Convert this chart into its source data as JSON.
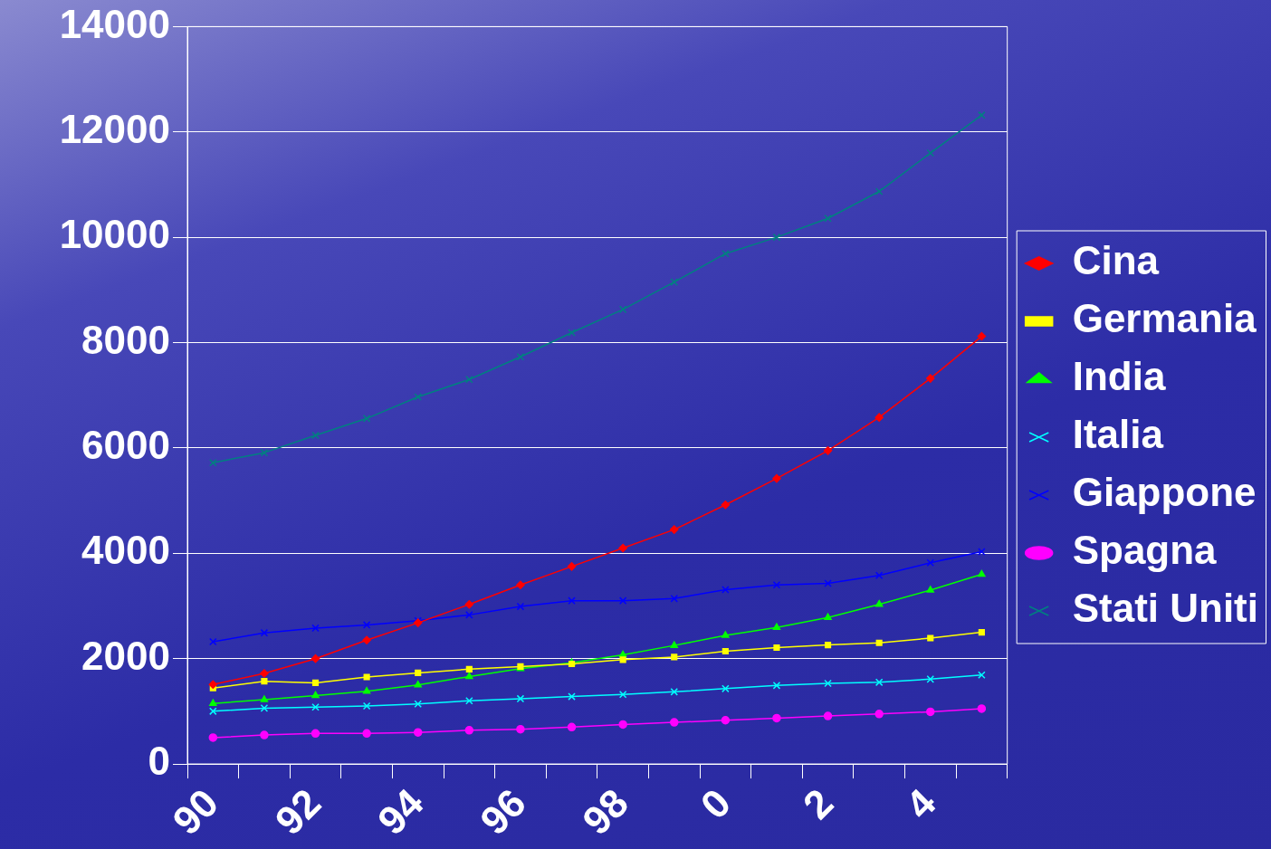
{
  "chart_data": {
    "type": "line",
    "categories": [
      "90",
      null,
      "92",
      null,
      "94",
      null,
      "96",
      null,
      "98",
      null,
      "0",
      null,
      "2",
      null,
      "4",
      null
    ],
    "series": [
      {
        "name": "Cina",
        "color": "#ff0000",
        "marker": "diamond",
        "values": [
          1510,
          1720,
          2000,
          2350,
          2680,
          3030,
          3400,
          3750,
          4100,
          4450,
          4920,
          5420,
          5950,
          6580,
          7320,
          8120
        ]
      },
      {
        "name": "Germania",
        "color": "#ffff00",
        "marker": "square",
        "values": [
          1440,
          1570,
          1540,
          1650,
          1730,
          1800,
          1850,
          1900,
          1980,
          2030,
          2140,
          2210,
          2260,
          2300,
          2390,
          2500
        ]
      },
      {
        "name": "India",
        "color": "#00ff00",
        "marker": "triangle",
        "values": [
          1150,
          1220,
          1300,
          1380,
          1500,
          1660,
          1810,
          1920,
          2070,
          2250,
          2440,
          2590,
          2780,
          3030,
          3300,
          3600
        ]
      },
      {
        "name": "Italia",
        "color": "#00ffff",
        "marker": "cross",
        "values": [
          1000,
          1060,
          1080,
          1100,
          1140,
          1200,
          1240,
          1280,
          1320,
          1370,
          1430,
          1490,
          1530,
          1550,
          1610,
          1690
        ]
      },
      {
        "name": "Giappone",
        "color": "#0000ff",
        "marker": "cross",
        "values": [
          2320,
          2490,
          2580,
          2640,
          2720,
          2830,
          2990,
          3100,
          3100,
          3140,
          3310,
          3400,
          3430,
          3580,
          3820,
          4030
        ]
      },
      {
        "name": "Spagna",
        "color": "#ff00ff",
        "marker": "circle",
        "values": [
          500,
          550,
          580,
          580,
          600,
          640,
          660,
          700,
          750,
          790,
          830,
          870,
          910,
          950,
          990,
          1050
        ]
      },
      {
        "name": "Stati Uniti",
        "color": "#008080",
        "marker": "cross",
        "values": [
          5720,
          5910,
          6240,
          6560,
          6970,
          7300,
          7730,
          8190,
          8630,
          9150,
          9690,
          10000,
          10360,
          10870,
          11600,
          12320
        ]
      }
    ],
    "ylim": [
      0,
      14000
    ],
    "yticks": [
      0,
      2000,
      4000,
      6000,
      8000,
      10000,
      12000,
      14000
    ],
    "grid": "y",
    "legend": "right"
  }
}
